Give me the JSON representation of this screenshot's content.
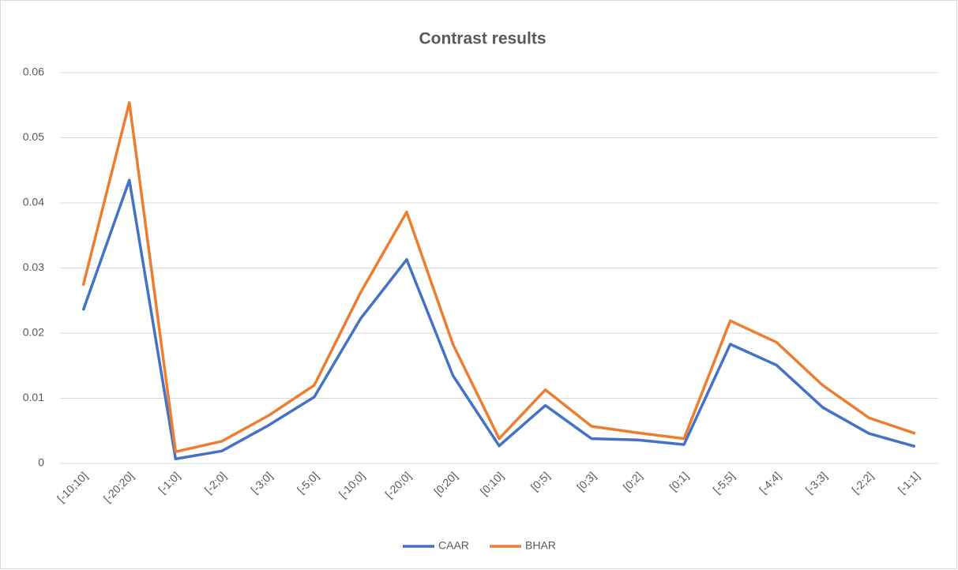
{
  "chart_data": {
    "type": "line",
    "title": "Contrast results",
    "categories": [
      "[-10;10]",
      "[-20;20]",
      "[-1;0]",
      "[-2;0]",
      "[-3;0]",
      "[-5;0]",
      "[-10;0]",
      "[-20;0]",
      "[0;20]",
      "[0;10]",
      "[0;5]",
      "[0;3]",
      "[0;2]",
      "[0;1]",
      "[-5;5]",
      "[-4;4]",
      "[-3;3]",
      "[-2;2]",
      "[-1;1]"
    ],
    "series": [
      {
        "name": "CAAR",
        "color": "#4472c4",
        "values": [
          0.0235,
          0.0435,
          0.0007,
          0.0019,
          0.0058,
          0.0102,
          0.0222,
          0.0313,
          0.0135,
          0.0027,
          0.0089,
          0.0038,
          0.0036,
          0.0029,
          0.0183,
          0.0151,
          0.0086,
          0.0046,
          0.0026
        ]
      },
      {
        "name": "BHAR",
        "color": "#ed7d31",
        "values": [
          0.0273,
          0.0554,
          0.0018,
          0.0034,
          0.0073,
          0.012,
          0.0262,
          0.0386,
          0.0183,
          0.0038,
          0.0113,
          0.0057,
          0.0047,
          0.0038,
          0.0219,
          0.0186,
          0.012,
          0.007,
          0.0046
        ]
      }
    ],
    "ylim": [
      0,
      0.06
    ],
    "yticks": [
      0,
      0.01,
      0.02,
      0.03,
      0.04,
      0.05,
      0.06
    ],
    "grid": true,
    "legend": "bottom"
  }
}
